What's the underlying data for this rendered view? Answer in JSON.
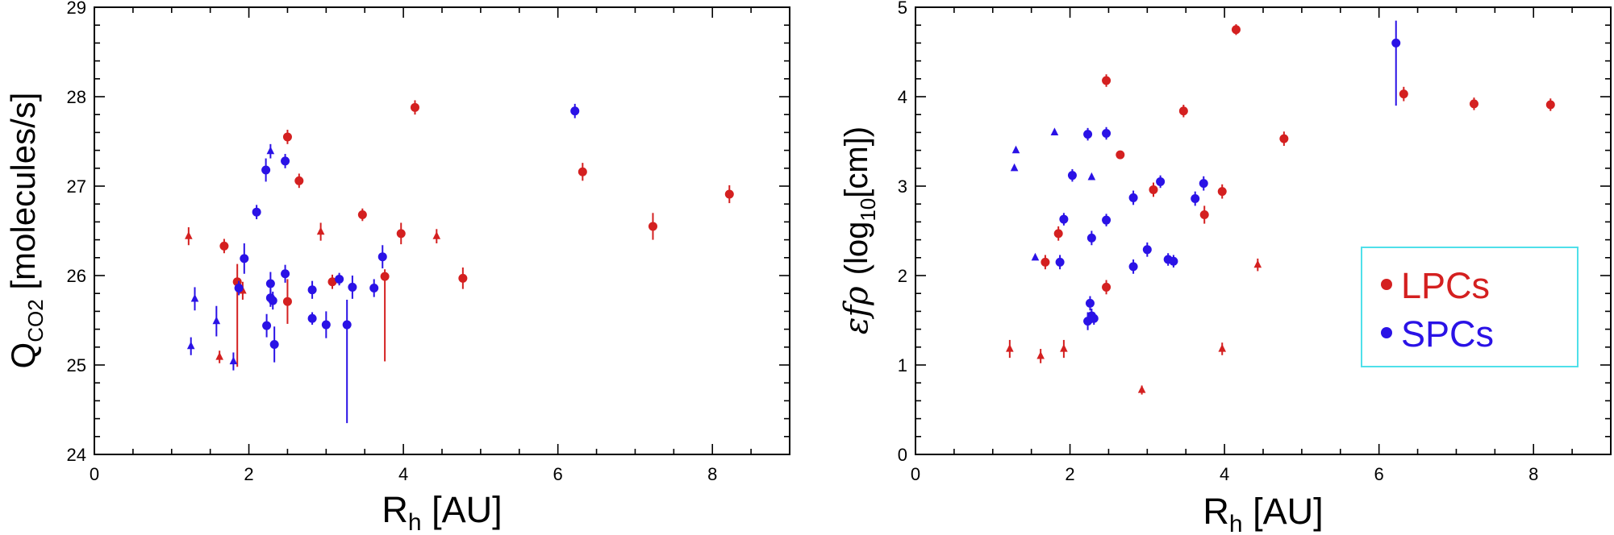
{
  "colors": {
    "lpc": "#d42020",
    "spc": "#2a12e6",
    "axis": "#000000",
    "legend_border": "#4fe0ea"
  },
  "chart_data": [
    {
      "type": "scatter",
      "title": "",
      "xlabel": "R_h [AU]",
      "xlabel_main": "R",
      "xlabel_sub": "h",
      "xlabel_rest": " [AU]",
      "ylabel_main": "Q",
      "ylabel_sub": "CO2",
      "ylabel_rest": " [molecules/s]",
      "xlim": [
        0,
        9
      ],
      "ylim": [
        24,
        29
      ],
      "xticks": [
        "0",
        "2",
        "4",
        "6",
        "8"
      ],
      "yticks": [
        "24",
        "25",
        "26",
        "27",
        "28",
        "29"
      ],
      "series": [
        {
          "name": "LPCs",
          "color": "lpc",
          "points": [
            {
              "x": 1.68,
              "y": 26.33,
              "e": 0.08,
              "m": "o"
            },
            {
              "x": 1.85,
              "y": 25.93,
              "e": 0.0,
              "m": "o",
              "eu": 0.2,
              "el": 0.95
            },
            {
              "x": 2.5,
              "y": 27.55,
              "e": 0.08,
              "m": "o"
            },
            {
              "x": 2.5,
              "y": 25.71,
              "e": 0.25,
              "m": "o"
            },
            {
              "x": 2.65,
              "y": 27.06,
              "e": 0.08,
              "m": "o"
            },
            {
              "x": 3.08,
              "y": 25.93,
              "e": 0.08,
              "m": "o"
            },
            {
              "x": 3.47,
              "y": 26.68,
              "e": 0.07,
              "m": "o"
            },
            {
              "x": 3.76,
              "y": 25.99,
              "e": 0.0,
              "m": "o",
              "eu": 0.08,
              "el": 0.95
            },
            {
              "x": 3.97,
              "y": 26.47,
              "e": 0.12,
              "m": "o"
            },
            {
              "x": 4.15,
              "y": 27.88,
              "e": 0.08,
              "m": "o"
            },
            {
              "x": 4.77,
              "y": 25.97,
              "e": 0.12,
              "m": "o"
            },
            {
              "x": 6.32,
              "y": 27.16,
              "e": 0.1,
              "m": "o"
            },
            {
              "x": 7.23,
              "y": 26.55,
              "e": 0.15,
              "m": "o"
            },
            {
              "x": 8.22,
              "y": 26.91,
              "e": 0.1,
              "m": "o"
            },
            {
              "x": 1.22,
              "y": 26.44,
              "e": 0.1,
              "m": "^"
            },
            {
              "x": 1.62,
              "y": 25.09,
              "e": 0.07,
              "m": "^"
            },
            {
              "x": 1.92,
              "y": 25.83,
              "e": 0.1,
              "m": "^"
            },
            {
              "x": 2.93,
              "y": 26.49,
              "e": 0.1,
              "m": "^"
            },
            {
              "x": 4.43,
              "y": 26.44,
              "e": 0.08,
              "m": "^"
            }
          ]
        },
        {
          "name": "SPCs",
          "color": "spc",
          "points": [
            {
              "x": 1.87,
              "y": 25.86,
              "e": 0.08,
              "m": "o"
            },
            {
              "x": 1.94,
              "y": 26.19,
              "e": 0.17,
              "m": "o"
            },
            {
              "x": 2.1,
              "y": 26.71,
              "e": 0.08,
              "m": "o"
            },
            {
              "x": 2.22,
              "y": 27.18,
              "e": 0.13,
              "m": "o"
            },
            {
              "x": 2.23,
              "y": 25.44,
              "e": 0.13,
              "m": "o"
            },
            {
              "x": 2.28,
              "y": 25.91,
              "e": 0.13,
              "m": "o"
            },
            {
              "x": 2.28,
              "y": 25.75,
              "e": 0.1,
              "m": "o"
            },
            {
              "x": 2.31,
              "y": 25.72,
              "e": 0.1,
              "m": "o"
            },
            {
              "x": 2.33,
              "y": 25.23,
              "e": 0.2,
              "m": "o"
            },
            {
              "x": 2.47,
              "y": 27.28,
              "e": 0.08,
              "m": "o"
            },
            {
              "x": 2.47,
              "y": 26.02,
              "e": 0.1,
              "m": "o"
            },
            {
              "x": 2.82,
              "y": 25.84,
              "e": 0.1,
              "m": "o"
            },
            {
              "x": 2.82,
              "y": 25.52,
              "e": 0.07,
              "m": "o"
            },
            {
              "x": 3.0,
              "y": 25.45,
              "e": 0.15,
              "m": "o"
            },
            {
              "x": 3.17,
              "y": 25.96,
              "e": 0.07,
              "m": "o"
            },
            {
              "x": 3.27,
              "y": 25.45,
              "e": 0.0,
              "m": "o",
              "eu": 0.28,
              "el": 1.1
            },
            {
              "x": 3.34,
              "y": 25.87,
              "e": 0.13,
              "m": "o"
            },
            {
              "x": 3.62,
              "y": 25.86,
              "e": 0.1,
              "m": "o"
            },
            {
              "x": 3.73,
              "y": 26.21,
              "e": 0.13,
              "m": "o"
            },
            {
              "x": 6.22,
              "y": 27.84,
              "e": 0.08,
              "m": "o"
            },
            {
              "x": 1.25,
              "y": 25.21,
              "e": 0.1,
              "m": "^"
            },
            {
              "x": 1.3,
              "y": 25.74,
              "e": 0.13,
              "m": "^"
            },
            {
              "x": 1.58,
              "y": 25.49,
              "e": 0.17,
              "m": "^"
            },
            {
              "x": 1.8,
              "y": 25.04,
              "e": 0.1,
              "m": "^"
            },
            {
              "x": 2.28,
              "y": 27.39,
              "e": 0.08,
              "m": "^"
            }
          ]
        }
      ]
    },
    {
      "type": "scatter",
      "title": "",
      "xlabel": "R_h [AU]",
      "xlabel_main": "R",
      "xlabel_sub": "h",
      "xlabel_rest": " [AU]",
      "ylabel_main": "εfρ",
      "ylabel_pre": "(log",
      "ylabel_sub": "10",
      "ylabel_rest": "[cm])",
      "xlim": [
        0,
        9
      ],
      "ylim": [
        0,
        5
      ],
      "xticks": [
        "0",
        "2",
        "4",
        "6",
        "8"
      ],
      "yticks": [
        "0",
        "1",
        "2",
        "3",
        "4",
        "5"
      ],
      "legend": {
        "position": "lower-right",
        "entries": [
          "LPCs",
          "SPCs"
        ]
      },
      "series": [
        {
          "name": "LPCs",
          "color": "lpc",
          "points": [
            {
              "x": 1.68,
              "y": 2.15,
              "e": 0.08,
              "m": "o"
            },
            {
              "x": 1.85,
              "y": 2.47,
              "e": 0.08,
              "m": "o"
            },
            {
              "x": 2.47,
              "y": 4.18,
              "e": 0.07,
              "m": "o"
            },
            {
              "x": 2.47,
              "y": 1.87,
              "e": 0.08,
              "m": "o"
            },
            {
              "x": 2.65,
              "y": 3.35,
              "e": 0.0,
              "m": "o"
            },
            {
              "x": 3.08,
              "y": 2.96,
              "e": 0.08,
              "m": "o"
            },
            {
              "x": 3.47,
              "y": 3.84,
              "e": 0.07,
              "m": "o"
            },
            {
              "x": 3.74,
              "y": 2.68,
              "e": 0.1,
              "m": "o"
            },
            {
              "x": 3.97,
              "y": 2.94,
              "e": 0.08,
              "m": "o"
            },
            {
              "x": 4.15,
              "y": 4.75,
              "e": 0.06,
              "m": "o"
            },
            {
              "x": 4.77,
              "y": 3.53,
              "e": 0.08,
              "m": "o"
            },
            {
              "x": 6.32,
              "y": 4.03,
              "e": 0.08,
              "m": "o"
            },
            {
              "x": 7.23,
              "y": 3.92,
              "e": 0.07,
              "m": "o"
            },
            {
              "x": 8.22,
              "y": 3.91,
              "e": 0.07,
              "m": "o"
            },
            {
              "x": 1.22,
              "y": 1.18,
              "e": 0.1,
              "m": "^"
            },
            {
              "x": 1.62,
              "y": 1.1,
              "e": 0.08,
              "m": "^"
            },
            {
              "x": 1.92,
              "y": 1.18,
              "e": 0.1,
              "m": "^"
            },
            {
              "x": 2.93,
              "y": 0.72,
              "e": 0.05,
              "m": "^"
            },
            {
              "x": 3.97,
              "y": 1.18,
              "e": 0.07,
              "m": "^"
            },
            {
              "x": 4.43,
              "y": 2.12,
              "e": 0.07,
              "m": "^"
            }
          ]
        },
        {
          "name": "SPCs",
          "color": "spc",
          "points": [
            {
              "x": 1.87,
              "y": 2.15,
              "e": 0.08,
              "m": "o"
            },
            {
              "x": 1.92,
              "y": 2.63,
              "e": 0.07,
              "m": "o"
            },
            {
              "x": 2.03,
              "y": 3.12,
              "e": 0.07,
              "m": "o"
            },
            {
              "x": 2.23,
              "y": 3.58,
              "e": 0.07,
              "m": "o"
            },
            {
              "x": 2.23,
              "y": 1.49,
              "e": 0.1,
              "m": "o"
            },
            {
              "x": 2.26,
              "y": 1.69,
              "e": 0.08,
              "m": "o"
            },
            {
              "x": 2.28,
              "y": 2.42,
              "e": 0.08,
              "m": "o"
            },
            {
              "x": 2.28,
              "y": 1.55,
              "e": 0.08,
              "m": "o"
            },
            {
              "x": 2.31,
              "y": 1.52,
              "e": 0.07,
              "m": "o"
            },
            {
              "x": 2.47,
              "y": 3.59,
              "e": 0.07,
              "m": "o"
            },
            {
              "x": 2.47,
              "y": 2.62,
              "e": 0.07,
              "m": "o"
            },
            {
              "x": 2.82,
              "y": 2.87,
              "e": 0.08,
              "m": "o"
            },
            {
              "x": 2.82,
              "y": 2.1,
              "e": 0.08,
              "m": "o"
            },
            {
              "x": 3.0,
              "y": 2.29,
              "e": 0.08,
              "m": "o"
            },
            {
              "x": 3.17,
              "y": 3.05,
              "e": 0.07,
              "m": "o"
            },
            {
              "x": 3.27,
              "y": 2.18,
              "e": 0.07,
              "m": "o"
            },
            {
              "x": 3.34,
              "y": 2.16,
              "e": 0.07,
              "m": "o"
            },
            {
              "x": 3.62,
              "y": 2.86,
              "e": 0.08,
              "m": "o"
            },
            {
              "x": 3.73,
              "y": 3.03,
              "e": 0.08,
              "m": "o"
            },
            {
              "x": 6.22,
              "y": 4.6,
              "e": 0.0,
              "m": "o",
              "eu": 0.25,
              "el": 0.7
            },
            {
              "x": 1.28,
              "y": 3.2,
              "e": 0.0,
              "m": "^"
            },
            {
              "x": 1.3,
              "y": 3.4,
              "e": 0.0,
              "m": "^"
            },
            {
              "x": 1.55,
              "y": 2.2,
              "e": 0.0,
              "m": "^"
            },
            {
              "x": 1.8,
              "y": 3.6,
              "e": 0.0,
              "m": "^"
            },
            {
              "x": 2.28,
              "y": 3.1,
              "e": 0.0,
              "m": "^"
            }
          ]
        }
      ]
    }
  ]
}
